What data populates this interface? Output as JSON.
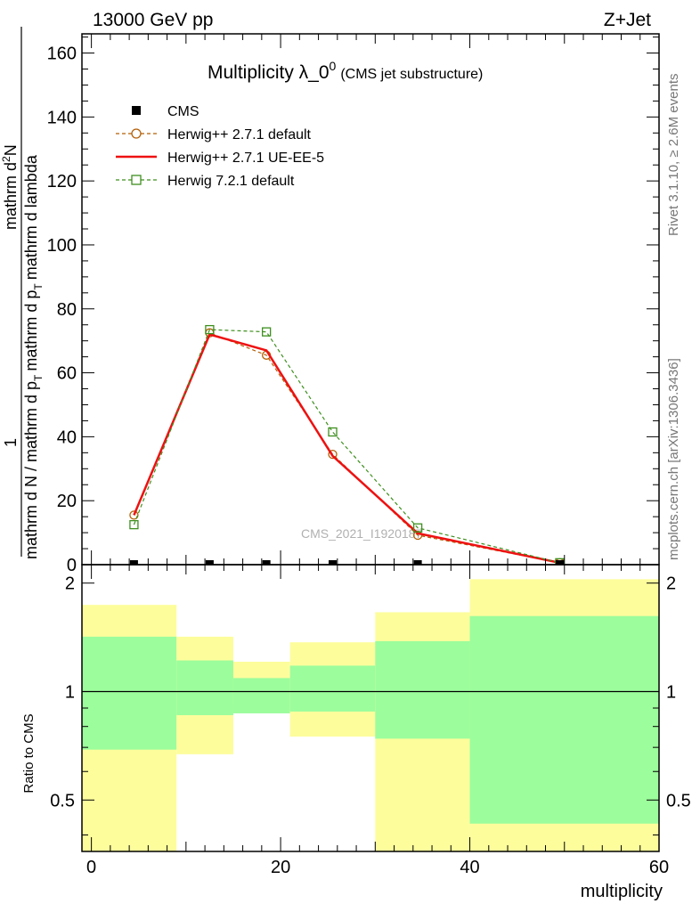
{
  "header": {
    "left": "13000 GeV pp",
    "right": "Z+Jet"
  },
  "side": {
    "rivet": "Rivet 3.1.10, ≥ 2.6M events",
    "mcplots": "mcplots.cern.ch [arXiv:1306.3436]"
  },
  "chart_data": [
    {
      "type": "line",
      "title": "Multiplicity λ_0",
      "title_sup": "0",
      "title_suffix": "(CMS jet substructure)",
      "watermark": "CMS_2021_I1920187",
      "ylabel_lines": [
        "1",
        "mathrm d N / mathrm d p",
        "T",
        "mathrm d",
        "mathrm d",
        "N",
        "mathrm d p",
        "T",
        "mathrm d lambda"
      ],
      "ylabel_numerator": "1",
      "ylabel_denominator": "mathrm d N / mathrm d p",
      "ylabel_denominator_sub": "T",
      "ylabel_fraction_top": "mathrm d",
      "ylabel_fraction_top_sup": "2",
      "ylabel_fraction_top_end": "N",
      "ylabel_fraction_bottom": "mathrm d p",
      "ylabel_fraction_bottom_sub": "T",
      "ylabel_fraction_bottom_end": "mathrm d lambda",
      "xlim": [
        -1,
        60
      ],
      "ylim": [
        0,
        166
      ],
      "yticks": [
        0,
        20,
        40,
        60,
        80,
        100,
        120,
        140,
        160
      ],
      "legend_position": "top-left",
      "series": [
        {
          "name": "CMS",
          "color": "#000000",
          "style": "markers",
          "x": [
            4.5,
            12.5,
            18.5,
            25.5,
            34.5,
            49.5
          ],
          "y": [
            0.3,
            0.3,
            0.3,
            0.3,
            0.3,
            0.1
          ],
          "xerr": [
            [
              0,
              9
            ],
            [
              9,
              16
            ],
            [
              16,
              21
            ],
            [
              21,
              30
            ],
            [
              30,
              40
            ],
            [
              40,
              59
            ]
          ]
        },
        {
          "name": "Herwig++ 2.7.1 default",
          "color": "#b45f06",
          "style": "dashed-circle",
          "x": [
            4.5,
            12.5,
            18.5,
            25.5,
            34.5,
            49.5
          ],
          "y": [
            15.5,
            72.5,
            65.5,
            34.5,
            9.2,
            0.6
          ]
        },
        {
          "name": "Herwig++ 2.7.1 UE-EE-5",
          "color": "#ee1111",
          "style": "solid",
          "x": [
            4.5,
            12.5,
            18.5,
            25.5,
            34.5,
            49.5
          ],
          "y": [
            15.5,
            72.0,
            67.0,
            34.0,
            9.8,
            0.6
          ]
        },
        {
          "name": "Herwig 7.2.1 default",
          "color": "#3e8f1e",
          "style": "dashed-square",
          "x": [
            4.5,
            12.5,
            18.5,
            25.5,
            34.5,
            49.5
          ],
          "y": [
            12.5,
            73.5,
            72.8,
            41.5,
            11.5,
            0.6
          ]
        }
      ]
    },
    {
      "type": "area",
      "ylabel": "Ratio to CMS",
      "xlabel": "multiplicity",
      "xlim": [
        -1,
        60
      ],
      "ylim": [
        0.36,
        2.25
      ],
      "scale": "log",
      "yticks": [
        0.5,
        1,
        2
      ],
      "xticks": [
        0,
        20,
        40,
        60
      ],
      "bands": [
        {
          "x0": -1,
          "x1": 9,
          "yellow": [
            0.36,
            1.74
          ],
          "green": [
            0.69,
            1.42
          ]
        },
        {
          "x0": 9,
          "x1": 15,
          "yellow": [
            0.67,
            1.42
          ],
          "green": [
            0.86,
            1.22
          ]
        },
        {
          "x0": 15,
          "x1": 21,
          "yellow": [
            0.92,
            1.21
          ],
          "green": [
            0.87,
            1.09
          ]
        },
        {
          "x0": 21,
          "x1": 30,
          "yellow": [
            0.75,
            1.37
          ],
          "green": [
            0.88,
            1.18
          ]
        },
        {
          "x0": 30,
          "x1": 40,
          "yellow": [
            0.36,
            1.66
          ],
          "green": [
            0.74,
            1.38
          ]
        },
        {
          "x0": 40,
          "x1": 60,
          "yellow": [
            0.36,
            2.05
          ],
          "green": [
            0.43,
            1.62
          ]
        }
      ],
      "band_colors": {
        "yellow": "#fdfd9c",
        "green": "#9cfd9c"
      }
    }
  ]
}
